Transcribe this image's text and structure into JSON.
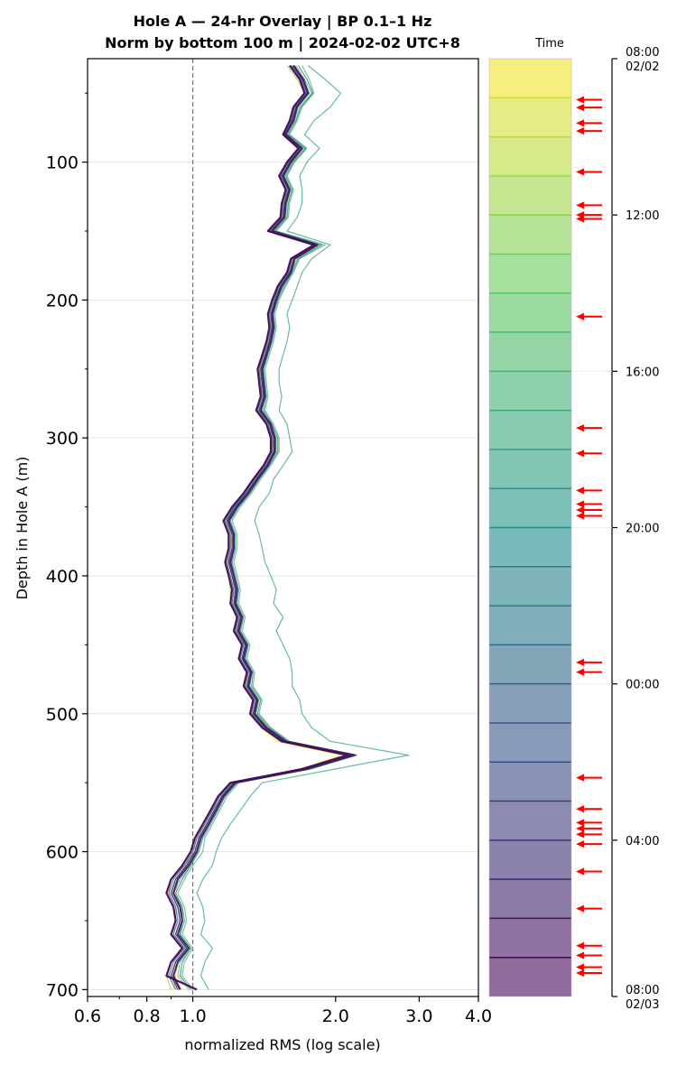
{
  "chart_data": {
    "type": "line",
    "title": "Hole A — 24-hr Overlay  |  BP 0.1–1 Hz",
    "subtitle": "Norm by bottom 100 m  |  2024-02-02 UTC+8",
    "xlabel": "normalized RMS  (log scale)",
    "ylabel": "Depth in Hole A (m)",
    "x_scale": "log",
    "xlim": [
      0.6,
      4.0
    ],
    "ylim": [
      705,
      25
    ],
    "y_inverted": true,
    "grid": "horizontal",
    "reference_line_x": 1.0,
    "x_ticks": [
      "0.6",
      "0.8",
      "1.0",
      "2.0",
      "3.0",
      "4.0"
    ],
    "y_ticks": [
      "100",
      "200",
      "300",
      "400",
      "500",
      "600",
      "700"
    ],
    "colorbar": {
      "label": "Time",
      "colormap": "viridis",
      "tick_labels": [
        "08:00\n02/02",
        "12:00",
        "16:00",
        "20:00",
        "00:00",
        "04:00",
        "08:00\n02/03"
      ],
      "tick_hours": [
        0,
        4,
        8,
        12,
        16,
        20,
        24
      ],
      "n_bands": 24,
      "event_marker_color": "#ff0000",
      "event_hours": [
        1.05,
        1.25,
        1.65,
        1.85,
        2.9,
        3.75,
        4.0,
        4.1,
        6.6,
        9.45,
        10.1,
        11.05,
        11.4,
        11.55,
        11.7,
        15.45,
        15.7,
        18.4,
        19.2,
        19.55,
        19.7,
        19.85,
        20.1,
        20.8,
        21.75,
        22.7,
        22.95,
        23.25,
        23.4
      ]
    },
    "depth": [
      30,
      40,
      50,
      60,
      70,
      80,
      90,
      100,
      110,
      120,
      130,
      140,
      150,
      160,
      170,
      180,
      190,
      200,
      210,
      220,
      230,
      240,
      250,
      260,
      270,
      280,
      290,
      300,
      310,
      320,
      330,
      340,
      350,
      360,
      370,
      380,
      390,
      400,
      410,
      420,
      430,
      440,
      450,
      460,
      470,
      480,
      490,
      500,
      510,
      520,
      530,
      540,
      550,
      560,
      570,
      580,
      590,
      600,
      610,
      620,
      630,
      640,
      650,
      660,
      670,
      680,
      690,
      700
    ],
    "series": [
      {
        "hour": 0,
        "values": [
          1.62,
          1.7,
          1.74,
          1.65,
          1.63,
          1.55,
          1.68,
          1.6,
          1.52,
          1.58,
          1.55,
          1.54,
          1.45,
          1.82,
          1.63,
          1.6,
          1.52,
          1.48,
          1.45,
          1.47,
          1.44,
          1.42,
          1.38,
          1.39,
          1.4,
          1.37,
          1.44,
          1.47,
          1.48,
          1.43,
          1.35,
          1.3,
          1.22,
          1.18,
          1.2,
          1.21,
          1.18,
          1.2,
          1.22,
          1.21,
          1.25,
          1.23,
          1.27,
          1.26,
          1.3,
          1.29,
          1.34,
          1.33,
          1.4,
          1.5,
          2.05,
          1.7,
          1.21,
          1.15,
          1.12,
          1.08,
          1.03,
          1.02,
          0.98,
          0.93,
          0.92,
          0.94,
          0.95,
          0.93,
          0.98,
          0.93,
          0.92,
          0.91
        ]
      },
      {
        "hour": 2,
        "values": [
          1.6,
          1.68,
          1.75,
          1.64,
          1.61,
          1.57,
          1.7,
          1.58,
          1.53,
          1.6,
          1.56,
          1.55,
          1.47,
          1.8,
          1.62,
          1.58,
          1.51,
          1.49,
          1.46,
          1.46,
          1.45,
          1.4,
          1.39,
          1.38,
          1.41,
          1.39,
          1.45,
          1.46,
          1.47,
          1.42,
          1.36,
          1.29,
          1.23,
          1.17,
          1.21,
          1.2,
          1.19,
          1.21,
          1.23,
          1.22,
          1.24,
          1.24,
          1.28,
          1.25,
          1.31,
          1.3,
          1.35,
          1.32,
          1.42,
          1.52,
          2.1,
          1.68,
          1.22,
          1.16,
          1.1,
          1.06,
          1.02,
          1.0,
          0.97,
          0.92,
          0.9,
          0.93,
          0.94,
          0.92,
          0.97,
          0.92,
          0.9,
          0.95
        ]
      },
      {
        "hour": 4,
        "values": [
          1.58,
          1.66,
          1.72,
          1.66,
          1.6,
          1.56,
          1.69,
          1.59,
          1.55,
          1.57,
          1.57,
          1.53,
          1.46,
          1.81,
          1.61,
          1.59,
          1.53,
          1.47,
          1.44,
          1.45,
          1.43,
          1.41,
          1.37,
          1.4,
          1.39,
          1.38,
          1.43,
          1.48,
          1.46,
          1.41,
          1.34,
          1.28,
          1.21,
          1.16,
          1.19,
          1.19,
          1.17,
          1.19,
          1.2,
          1.2,
          1.26,
          1.22,
          1.3,
          1.27,
          1.33,
          1.31,
          1.36,
          1.35,
          1.41,
          1.55,
          2.15,
          1.72,
          1.2,
          1.13,
          1.09,
          1.05,
          1.01,
          1.01,
          0.96,
          0.9,
          0.89,
          0.92,
          0.92,
          0.91,
          0.96,
          0.9,
          0.88,
          0.9
        ]
      },
      {
        "hour": 6,
        "values": [
          1.65,
          1.72,
          1.78,
          1.68,
          1.64,
          1.58,
          1.72,
          1.62,
          1.56,
          1.61,
          1.58,
          1.57,
          1.48,
          1.85,
          1.66,
          1.61,
          1.55,
          1.5,
          1.47,
          1.48,
          1.46,
          1.43,
          1.4,
          1.41,
          1.42,
          1.4,
          1.46,
          1.5,
          1.5,
          1.44,
          1.37,
          1.31,
          1.24,
          1.19,
          1.22,
          1.22,
          1.2,
          1.22,
          1.24,
          1.23,
          1.27,
          1.25,
          1.3,
          1.28,
          1.33,
          1.32,
          1.38,
          1.36,
          1.44,
          1.58,
          2.2,
          1.75,
          1.23,
          1.16,
          1.12,
          1.08,
          1.04,
          1.02,
          0.99,
          0.94,
          0.91,
          0.95,
          0.95,
          0.94,
          0.99,
          0.94,
          0.93,
          0.98
        ]
      },
      {
        "hour": 8,
        "values": [
          1.7,
          1.76,
          1.8,
          1.7,
          1.66,
          1.6,
          1.74,
          1.64,
          1.58,
          1.63,
          1.6,
          1.59,
          1.5,
          1.9,
          1.68,
          1.63,
          1.57,
          1.52,
          1.49,
          1.5,
          1.48,
          1.45,
          1.42,
          1.43,
          1.44,
          1.42,
          1.48,
          1.52,
          1.52,
          1.46,
          1.39,
          1.33,
          1.26,
          1.21,
          1.24,
          1.24,
          1.22,
          1.24,
          1.26,
          1.25,
          1.29,
          1.27,
          1.32,
          1.3,
          1.35,
          1.34,
          1.4,
          1.38,
          1.46,
          1.6,
          2.22,
          1.78,
          1.25,
          1.18,
          1.14,
          1.1,
          1.06,
          1.05,
          1.0,
          0.96,
          0.93,
          0.96,
          0.97,
          0.95,
          1.0,
          0.96,
          0.95,
          1.0
        ]
      },
      {
        "hour": 10,
        "values": [
          1.75,
          1.9,
          2.05,
          1.95,
          1.8,
          1.72,
          1.85,
          1.74,
          1.68,
          1.7,
          1.7,
          1.66,
          1.58,
          1.95,
          1.78,
          1.7,
          1.66,
          1.62,
          1.58,
          1.6,
          1.58,
          1.55,
          1.52,
          1.52,
          1.54,
          1.52,
          1.58,
          1.6,
          1.62,
          1.55,
          1.48,
          1.45,
          1.38,
          1.35,
          1.38,
          1.4,
          1.42,
          1.46,
          1.5,
          1.48,
          1.55,
          1.5,
          1.55,
          1.6,
          1.62,
          1.62,
          1.68,
          1.7,
          1.78,
          1.95,
          2.85,
          2.0,
          1.4,
          1.32,
          1.26,
          1.2,
          1.15,
          1.12,
          1.1,
          1.05,
          1.02,
          1.05,
          1.06,
          1.04,
          1.1,
          1.06,
          1.04,
          1.08
        ]
      },
      {
        "hour": 12,
        "values": [
          1.63,
          1.71,
          1.76,
          1.66,
          1.62,
          1.56,
          1.7,
          1.61,
          1.54,
          1.59,
          1.56,
          1.55,
          1.46,
          1.83,
          1.64,
          1.6,
          1.53,
          1.49,
          1.46,
          1.47,
          1.45,
          1.42,
          1.39,
          1.4,
          1.41,
          1.38,
          1.45,
          1.48,
          1.49,
          1.44,
          1.36,
          1.3,
          1.22,
          1.18,
          1.21,
          1.21,
          1.19,
          1.21,
          1.23,
          1.22,
          1.26,
          1.24,
          1.29,
          1.27,
          1.32,
          1.3,
          1.36,
          1.34,
          1.42,
          1.56,
          2.16,
          1.73,
          1.22,
          1.15,
          1.11,
          1.07,
          1.03,
          1.01,
          0.97,
          0.92,
          0.9,
          0.93,
          0.94,
          0.92,
          0.97,
          0.92,
          0.9,
          0.94
        ]
      },
      {
        "hour": 14,
        "values": [
          1.67,
          1.74,
          1.79,
          1.69,
          1.65,
          1.59,
          1.73,
          1.63,
          1.57,
          1.62,
          1.59,
          1.58,
          1.49,
          1.87,
          1.67,
          1.62,
          1.56,
          1.51,
          1.48,
          1.49,
          1.47,
          1.44,
          1.41,
          1.42,
          1.43,
          1.41,
          1.47,
          1.51,
          1.51,
          1.45,
          1.38,
          1.32,
          1.25,
          1.2,
          1.23,
          1.23,
          1.21,
          1.23,
          1.25,
          1.24,
          1.28,
          1.26,
          1.31,
          1.29,
          1.34,
          1.33,
          1.39,
          1.37,
          1.45,
          1.59,
          2.21,
          1.76,
          1.24,
          1.17,
          1.13,
          1.09,
          1.05,
          1.03,
          0.99,
          0.95,
          0.92,
          0.95,
          0.96,
          0.94,
          0.99,
          0.95,
          0.94,
          0.99
        ]
      },
      {
        "hour": 16,
        "values": [
          1.64,
          1.7,
          1.75,
          1.65,
          1.62,
          1.57,
          1.69,
          1.6,
          1.55,
          1.6,
          1.57,
          1.56,
          1.47,
          1.82,
          1.64,
          1.6,
          1.54,
          1.5,
          1.47,
          1.47,
          1.45,
          1.43,
          1.39,
          1.4,
          1.41,
          1.39,
          1.45,
          1.48,
          1.48,
          1.43,
          1.36,
          1.3,
          1.23,
          1.18,
          1.21,
          1.21,
          1.19,
          1.21,
          1.23,
          1.22,
          1.26,
          1.24,
          1.29,
          1.27,
          1.32,
          1.31,
          1.36,
          1.34,
          1.43,
          1.57,
          2.18,
          1.74,
          1.22,
          1.15,
          1.11,
          1.07,
          1.03,
          1.01,
          0.97,
          0.92,
          0.9,
          0.93,
          0.94,
          0.92,
          0.97,
          0.92,
          0.9,
          0.93
        ]
      },
      {
        "hour": 18,
        "values": [
          1.61,
          1.69,
          1.73,
          1.64,
          1.61,
          1.55,
          1.68,
          1.59,
          1.53,
          1.58,
          1.55,
          1.54,
          1.45,
          1.81,
          1.62,
          1.59,
          1.52,
          1.48,
          1.45,
          1.46,
          1.44,
          1.41,
          1.38,
          1.39,
          1.4,
          1.37,
          1.44,
          1.47,
          1.47,
          1.42,
          1.35,
          1.29,
          1.22,
          1.17,
          1.2,
          1.2,
          1.18,
          1.2,
          1.22,
          1.21,
          1.25,
          1.23,
          1.28,
          1.26,
          1.31,
          1.29,
          1.35,
          1.33,
          1.41,
          1.55,
          2.14,
          1.71,
          1.21,
          1.14,
          1.1,
          1.06,
          1.02,
          1.0,
          0.96,
          0.91,
          0.89,
          0.92,
          0.93,
          0.91,
          0.96,
          0.91,
          0.89,
          0.92
        ]
      },
      {
        "hour": 20,
        "values": [
          1.62,
          1.7,
          1.74,
          1.65,
          1.62,
          1.56,
          1.69,
          1.6,
          1.54,
          1.59,
          1.56,
          1.55,
          1.46,
          1.82,
          1.63,
          1.6,
          1.53,
          1.49,
          1.46,
          1.47,
          1.45,
          1.42,
          1.39,
          1.4,
          1.41,
          1.38,
          1.45,
          1.48,
          1.48,
          1.43,
          1.36,
          1.3,
          1.23,
          1.18,
          1.21,
          1.21,
          1.19,
          1.21,
          1.23,
          1.22,
          1.26,
          1.24,
          1.29,
          1.27,
          1.32,
          1.3,
          1.36,
          1.34,
          1.42,
          1.56,
          2.17,
          1.73,
          1.22,
          1.15,
          1.11,
          1.07,
          1.03,
          1.01,
          0.97,
          0.92,
          0.9,
          0.93,
          0.94,
          0.92,
          0.97,
          0.92,
          0.9,
          0.93
        ]
      },
      {
        "hour": 22,
        "values": [
          1.63,
          1.71,
          1.75,
          1.66,
          1.63,
          1.57,
          1.7,
          1.61,
          1.55,
          1.6,
          1.57,
          1.56,
          1.47,
          1.83,
          1.64,
          1.61,
          1.54,
          1.5,
          1.47,
          1.48,
          1.46,
          1.43,
          1.4,
          1.41,
          1.42,
          1.39,
          1.46,
          1.49,
          1.49,
          1.44,
          1.37,
          1.31,
          1.24,
          1.19,
          1.22,
          1.22,
          1.2,
          1.22,
          1.24,
          1.23,
          1.27,
          1.25,
          1.3,
          1.28,
          1.33,
          1.31,
          1.37,
          1.35,
          1.43,
          1.57,
          2.19,
          1.74,
          1.23,
          1.16,
          1.12,
          1.08,
          1.04,
          1.02,
          0.98,
          0.93,
          0.91,
          0.94,
          0.95,
          0.93,
          0.98,
          0.93,
          0.91,
          0.94
        ]
      },
      {
        "hour": 23.5,
        "values": [
          1.6,
          1.68,
          1.72,
          1.63,
          1.6,
          1.55,
          1.67,
          1.58,
          1.52,
          1.57,
          1.54,
          1.53,
          1.44,
          1.8,
          1.61,
          1.58,
          1.51,
          1.47,
          1.44,
          1.45,
          1.43,
          1.4,
          1.37,
          1.38,
          1.39,
          1.36,
          1.43,
          1.46,
          1.46,
          1.41,
          1.34,
          1.28,
          1.21,
          1.16,
          1.19,
          1.19,
          1.17,
          1.19,
          1.21,
          1.2,
          1.24,
          1.22,
          1.27,
          1.25,
          1.3,
          1.28,
          1.34,
          1.32,
          1.4,
          1.54,
          2.12,
          1.7,
          1.2,
          1.13,
          1.09,
          1.05,
          1.01,
          0.99,
          0.95,
          0.9,
          0.88,
          0.91,
          0.92,
          0.9,
          0.95,
          0.9,
          0.88,
          1.02
        ]
      }
    ]
  }
}
